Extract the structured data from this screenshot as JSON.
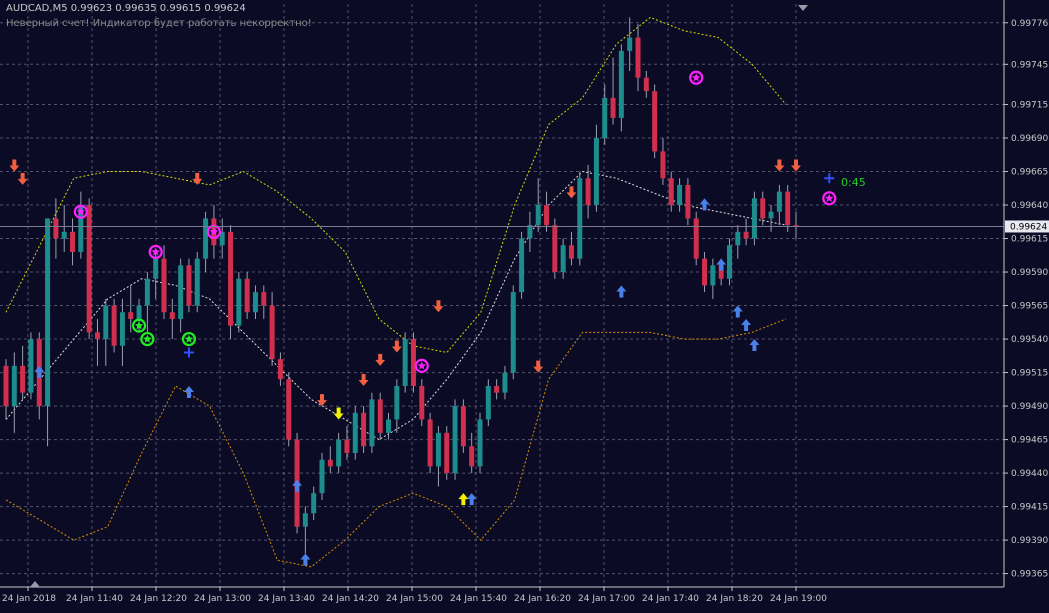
{
  "header": {
    "symbol_line": "AUDCAD,M5 0.99623 0.99635 0.99615 0.99624",
    "warning": "Неверный счет! Индикатор будет работать некорректно!"
  },
  "timer_label": "0:45",
  "colors": {
    "background": "#0b0b26",
    "grid": "#8c8ca0",
    "bull_candle": "#1c8c8c",
    "bear_candle": "#d0304e",
    "upper_band": "#d8d800",
    "mid_band": "#e0e0e0",
    "lower_band": "#d89000",
    "arrow_up": "#4a80e8",
    "arrow_down": "#f06040",
    "arrow_yellow": "#f0f000",
    "star_magenta": "#ff20ff",
    "star_green": "#20ee20",
    "price_label_bg": "#e8e8f0"
  },
  "chart_data": {
    "type": "candlestick",
    "symbol": "AUDCAD",
    "timeframe": "M5",
    "ohlc_header": {
      "open": 0.99623,
      "high": 0.99635,
      "low": 0.99615,
      "close": 0.99624
    },
    "current_price": 0.99624,
    "current_price_label": "0.99624",
    "ylim": [
      0.99355,
      0.9979
    ],
    "y_ticks": [
      "0.99776",
      "0.99745",
      "0.99715",
      "0.99690",
      "0.99665",
      "0.99640",
      "0.99615",
      "0.99590",
      "0.99565",
      "0.99540",
      "0.99515",
      "0.99490",
      "0.99465",
      "0.99440",
      "0.99415",
      "0.99390",
      "0.99365"
    ],
    "x_ticks": [
      "24 Jan 2018",
      "24 Jan 11:40",
      "24 Jan 12:20",
      "24 Jan 13:00",
      "24 Jan 13:40",
      "24 Jan 14:20",
      "24 Jan 15:00",
      "24 Jan 15:40",
      "24 Jan 16:20",
      "24 Jan 17:00",
      "24 Jan 17:40",
      "24 Jan 18:20",
      "24 Jan 19:00"
    ],
    "grid": true,
    "candles": [
      [
        0.9952,
        0.99525,
        0.9948,
        0.9949
      ],
      [
        0.9949,
        0.9953,
        0.9947,
        0.9952
      ],
      [
        0.9952,
        0.99535,
        0.99495,
        0.995
      ],
      [
        0.995,
        0.99545,
        0.99495,
        0.9954
      ],
      [
        0.9954,
        0.99545,
        0.9948,
        0.9949
      ],
      [
        0.9949,
        0.9963,
        0.9946,
        0.9963
      ],
      [
        0.9963,
        0.99645,
        0.996,
        0.99615
      ],
      [
        0.99615,
        0.9964,
        0.99605,
        0.9962
      ],
      [
        0.9962,
        0.9963,
        0.99595,
        0.99605
      ],
      [
        0.99605,
        0.9965,
        0.996,
        0.9964
      ],
      [
        0.9964,
        0.99645,
        0.9954,
        0.99545
      ],
      [
        0.99545,
        0.99555,
        0.9952,
        0.9954
      ],
      [
        0.9954,
        0.9957,
        0.9952,
        0.99565
      ],
      [
        0.99565,
        0.9957,
        0.9953,
        0.99535
      ],
      [
        0.99535,
        0.9957,
        0.9952,
        0.9956
      ],
      [
        0.9956,
        0.9958,
        0.99545,
        0.99555
      ],
      [
        0.99555,
        0.9957,
        0.99545,
        0.99565
      ],
      [
        0.99565,
        0.9959,
        0.99545,
        0.99585
      ],
      [
        0.99585,
        0.99605,
        0.9957,
        0.996
      ],
      [
        0.996,
        0.9961,
        0.99555,
        0.9956
      ],
      [
        0.9956,
        0.9957,
        0.9954,
        0.99555
      ],
      [
        0.99555,
        0.996,
        0.99545,
        0.99595
      ],
      [
        0.99595,
        0.996,
        0.9956,
        0.99565
      ],
      [
        0.99565,
        0.99605,
        0.9956,
        0.996
      ],
      [
        0.996,
        0.99635,
        0.9959,
        0.9963
      ],
      [
        0.9963,
        0.9964,
        0.996,
        0.9961
      ],
      [
        0.9961,
        0.9963,
        0.996,
        0.9962
      ],
      [
        0.9962,
        0.99625,
        0.9954,
        0.9955
      ],
      [
        0.9955,
        0.9959,
        0.99545,
        0.99585
      ],
      [
        0.99585,
        0.9959,
        0.99555,
        0.9956
      ],
      [
        0.9956,
        0.9958,
        0.99555,
        0.99575
      ],
      [
        0.99575,
        0.9958,
        0.99555,
        0.99565
      ],
      [
        0.99565,
        0.99575,
        0.9952,
        0.99525
      ],
      [
        0.99525,
        0.9953,
        0.99505,
        0.9951
      ],
      [
        0.9951,
        0.99515,
        0.9946,
        0.99465
      ],
      [
        0.99465,
        0.9947,
        0.99395,
        0.994
      ],
      [
        0.994,
        0.99415,
        0.9938,
        0.9941
      ],
      [
        0.9941,
        0.9943,
        0.99405,
        0.99425
      ],
      [
        0.99425,
        0.99455,
        0.9942,
        0.9945
      ],
      [
        0.9945,
        0.9946,
        0.9944,
        0.99445
      ],
      [
        0.99445,
        0.9947,
        0.9944,
        0.99465
      ],
      [
        0.99465,
        0.99475,
        0.9945,
        0.99455
      ],
      [
        0.99455,
        0.9949,
        0.9945,
        0.99485
      ],
      [
        0.99485,
        0.9949,
        0.99455,
        0.9946
      ],
      [
        0.9946,
        0.995,
        0.99455,
        0.99495
      ],
      [
        0.99495,
        0.995,
        0.99465,
        0.9947
      ],
      [
        0.9947,
        0.99485,
        0.99465,
        0.9948
      ],
      [
        0.9948,
        0.9951,
        0.9947,
        0.99505
      ],
      [
        0.99505,
        0.99545,
        0.995,
        0.9954
      ],
      [
        0.9954,
        0.99545,
        0.995,
        0.99505
      ],
      [
        0.99505,
        0.9951,
        0.99475,
        0.9948
      ],
      [
        0.9948,
        0.99485,
        0.9944,
        0.99445
      ],
      [
        0.99445,
        0.99475,
        0.9943,
        0.9947
      ],
      [
        0.9947,
        0.99475,
        0.99435,
        0.9944
      ],
      [
        0.9944,
        0.99495,
        0.99435,
        0.9949
      ],
      [
        0.9949,
        0.99495,
        0.99455,
        0.9946
      ],
      [
        0.9946,
        0.9947,
        0.9944,
        0.99445
      ],
      [
        0.99445,
        0.99485,
        0.9944,
        0.9948
      ],
      [
        0.9948,
        0.9951,
        0.99475,
        0.99505
      ],
      [
        0.99505,
        0.9951,
        0.99495,
        0.995
      ],
      [
        0.995,
        0.9952,
        0.99495,
        0.99515
      ],
      [
        0.99515,
        0.9958,
        0.9951,
        0.99575
      ],
      [
        0.99575,
        0.9962,
        0.9957,
        0.99615
      ],
      [
        0.99615,
        0.99635,
        0.99605,
        0.99625
      ],
      [
        0.99625,
        0.9966,
        0.9962,
        0.9964
      ],
      [
        0.9964,
        0.9965,
        0.9962,
        0.99625
      ],
      [
        0.99625,
        0.9963,
        0.99585,
        0.9959
      ],
      [
        0.9959,
        0.99615,
        0.99585,
        0.9961
      ],
      [
        0.9961,
        0.9962,
        0.99595,
        0.996
      ],
      [
        0.996,
        0.99665,
        0.99595,
        0.9966
      ],
      [
        0.9966,
        0.9967,
        0.9963,
        0.9964
      ],
      [
        0.9964,
        0.997,
        0.99635,
        0.9969
      ],
      [
        0.9969,
        0.9973,
        0.99685,
        0.9972
      ],
      [
        0.9972,
        0.9975,
        0.997,
        0.99705
      ],
      [
        0.99705,
        0.9976,
        0.99695,
        0.99755
      ],
      [
        0.99755,
        0.9978,
        0.9974,
        0.99765
      ],
      [
        0.99765,
        0.99775,
        0.99725,
        0.99735
      ],
      [
        0.99735,
        0.9974,
        0.9972,
        0.99725
      ],
      [
        0.99725,
        0.9973,
        0.99675,
        0.9968
      ],
      [
        0.9968,
        0.9969,
        0.99655,
        0.9966
      ],
      [
        0.9966,
        0.99665,
        0.99635,
        0.9964
      ],
      [
        0.9964,
        0.9966,
        0.99635,
        0.99655
      ],
      [
        0.99655,
        0.9966,
        0.99625,
        0.9963
      ],
      [
        0.9963,
        0.99635,
        0.99595,
        0.996
      ],
      [
        0.996,
        0.99605,
        0.99575,
        0.9958
      ],
      [
        0.9958,
        0.996,
        0.9957,
        0.99595
      ],
      [
        0.99595,
        0.996,
        0.9958,
        0.99585
      ],
      [
        0.99585,
        0.99615,
        0.9958,
        0.9961
      ],
      [
        0.9961,
        0.99625,
        0.996,
        0.9962
      ],
      [
        0.9962,
        0.9963,
        0.9961,
        0.99615
      ],
      [
        0.99615,
        0.9965,
        0.9961,
        0.99645
      ],
      [
        0.99645,
        0.9965,
        0.99625,
        0.9963
      ],
      [
        0.9963,
        0.9964,
        0.9962,
        0.99635
      ],
      [
        0.99635,
        0.99655,
        0.99625,
        0.9965
      ],
      [
        0.9965,
        0.99655,
        0.9962,
        0.99625
      ],
      [
        0.99625,
        0.99635,
        0.99615,
        0.99624
      ]
    ],
    "bollinger": {
      "period_points": 14,
      "upper": [
        0.9956,
        0.9961,
        0.9966,
        0.99665,
        0.99665,
        0.9966,
        0.99655,
        0.99665,
        0.9965,
        0.9963,
        0.99605,
        0.99555,
        0.99535,
        0.9953,
        0.9956,
        0.9964,
        0.997,
        0.9972,
        0.9976,
        0.9978,
        0.9977,
        0.99765,
        0.99745,
        0.99715
      ],
      "middle": [
        0.9948,
        0.9951,
        0.9954,
        0.9957,
        0.99585,
        0.9958,
        0.9957,
        0.99545,
        0.9952,
        0.99495,
        0.9948,
        0.99465,
        0.9948,
        0.9951,
        0.99545,
        0.996,
        0.9964,
        0.99665,
        0.9966,
        0.9965,
        0.9964,
        0.99635,
        0.9963,
        0.99625
      ],
      "lower": [
        0.9942,
        0.99405,
        0.9939,
        0.994,
        0.99455,
        0.99505,
        0.9949,
        0.9944,
        0.99375,
        0.9937,
        0.9939,
        0.99415,
        0.99425,
        0.99415,
        0.9939,
        0.9942,
        0.9951,
        0.99545,
        0.99545,
        0.99545,
        0.9954,
        0.9954,
        0.99545,
        0.99555
      ]
    },
    "signals_up": [
      [
        4,
        0.9952
      ],
      [
        22,
        0.99505
      ],
      [
        35,
        0.99435
      ],
      [
        36,
        0.9938
      ],
      [
        56,
        0.99425
      ],
      [
        74,
        0.9958
      ],
      [
        84,
        0.99645
      ],
      [
        86,
        0.996
      ],
      [
        88,
        0.99565
      ],
      [
        89,
        0.99555
      ],
      [
        90,
        0.9954
      ]
    ],
    "signals_up_yellow": [
      [
        55,
        0.99425
      ]
    ],
    "signals_down": [
      [
        1,
        0.99665
      ],
      [
        2,
        0.99655
      ],
      [
        23,
        0.99655
      ],
      [
        38,
        0.9949
      ],
      [
        43,
        0.99505
      ],
      [
        45,
        0.9952
      ],
      [
        47,
        0.9953
      ],
      [
        52,
        0.9956
      ],
      [
        64,
        0.99515
      ],
      [
        68,
        0.99645
      ],
      [
        93,
        0.99665
      ],
      [
        95,
        0.99665
      ]
    ],
    "signals_down_yellow": [
      [
        40,
        0.9948
      ]
    ],
    "stars_magenta": [
      [
        9,
        0.99635
      ],
      [
        18,
        0.99605
      ],
      [
        25,
        0.9962
      ],
      [
        50,
        0.9952
      ],
      [
        83,
        0.99735
      ],
      [
        99,
        0.99645
      ]
    ],
    "stars_green": [
      [
        16,
        0.9955
      ],
      [
        17,
        0.9954
      ],
      [
        22,
        0.9954
      ]
    ],
    "cross_blue": [
      [
        22,
        0.9953
      ],
      [
        99,
        0.9966
      ]
    ]
  }
}
